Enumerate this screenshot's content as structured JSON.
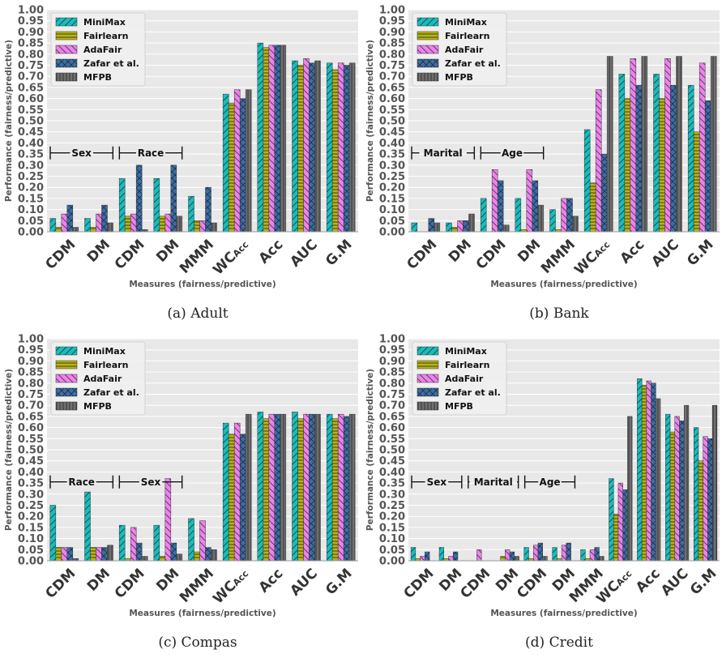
{
  "legend_labels": [
    "MiniMax",
    "Fairlearn",
    "AdaFair",
    "Zafar et al.",
    "MFPB"
  ],
  "series_colors": [
    "#17bdbd",
    "#b8b414",
    "#ee82ee",
    "#3a6fa8",
    "#6f6f6f"
  ],
  "series_patterns": [
    "diagonal-forward",
    "horizontal",
    "diagonal-back",
    "cross",
    "vertical"
  ],
  "legend_placement": "top-left",
  "grid": true,
  "chart_data": [
    {
      "type": "bar",
      "caption": "(a) Adult",
      "xlabel": "Measures (fairness/predictive)",
      "ylabel": "Performance (fairness/predictive)",
      "ylim": [
        0,
        1
      ],
      "yticks": [
        "0.00",
        "0.05",
        "0.10",
        "0.15",
        "0.20",
        "0.25",
        "0.30",
        "0.35",
        "0.40",
        "0.45",
        "0.50",
        "0.55",
        "0.60",
        "0.65",
        "0.70",
        "0.75",
        "0.80",
        "0.85",
        "0.90",
        "0.95",
        "1.00"
      ],
      "categories": [
        "CDM",
        "DM",
        "CDM",
        "DM",
        "MMM",
        "WC_Acc",
        "Acc",
        "AUC",
        "G.M"
      ],
      "groups": [
        {
          "label": "Sex",
          "from": 0,
          "to": 1
        },
        {
          "label": "Race",
          "from": 2,
          "to": 3
        }
      ],
      "series": [
        {
          "name": "MiniMax",
          "values": [
            0.06,
            0.06,
            0.24,
            0.24,
            0.16,
            0.62,
            0.85,
            0.77,
            0.76
          ]
        },
        {
          "name": "Fairlearn",
          "values": [
            0.02,
            0.02,
            0.07,
            0.07,
            0.05,
            0.58,
            0.83,
            0.75,
            0.73
          ]
        },
        {
          "name": "AdaFair",
          "values": [
            0.08,
            0.08,
            0.08,
            0.08,
            0.05,
            0.64,
            0.84,
            0.78,
            0.76
          ]
        },
        {
          "name": "Zafar et al.",
          "values": [
            0.12,
            0.12,
            0.3,
            0.3,
            0.2,
            0.6,
            0.84,
            0.76,
            0.75
          ]
        },
        {
          "name": "MFPB",
          "values": [
            0.02,
            0.04,
            0.01,
            0.07,
            0.04,
            0.64,
            0.84,
            0.77,
            0.76
          ]
        }
      ]
    },
    {
      "type": "bar",
      "caption": "(b) Bank",
      "xlabel": "Measures (fairness/predictive)",
      "ylabel": "Performance (fairness/predictive)",
      "ylim": [
        0,
        1
      ],
      "yticks": [
        "0.00",
        "0.05",
        "0.10",
        "0.15",
        "0.20",
        "0.25",
        "0.30",
        "0.35",
        "0.40",
        "0.45",
        "0.50",
        "0.55",
        "0.60",
        "0.65",
        "0.70",
        "0.75",
        "0.80",
        "0.85",
        "0.90",
        "0.95",
        "1.00"
      ],
      "categories": [
        "CDM",
        "DM",
        "CDM",
        "DM",
        "MMM",
        "WC_Acc",
        "Acc",
        "AUC",
        "G.M"
      ],
      "groups": [
        {
          "label": "Marital",
          "from": 0,
          "to": 1
        },
        {
          "label": "Age",
          "from": 2,
          "to": 3
        }
      ],
      "series": [
        {
          "name": "MiniMax",
          "values": [
            0.04,
            0.04,
            0.15,
            0.15,
            0.1,
            0.46,
            0.71,
            0.71,
            0.66
          ]
        },
        {
          "name": "Fairlearn",
          "values": [
            0.0,
            0.02,
            0.0,
            0.01,
            0.01,
            0.22,
            0.6,
            0.6,
            0.45
          ]
        },
        {
          "name": "AdaFair",
          "values": [
            0.0,
            0.05,
            0.28,
            0.28,
            0.15,
            0.64,
            0.78,
            0.78,
            0.76
          ]
        },
        {
          "name": "Zafar et al.",
          "values": [
            0.06,
            0.05,
            0.23,
            0.23,
            0.15,
            0.35,
            0.66,
            0.66,
            0.59
          ]
        },
        {
          "name": "MFPB",
          "values": [
            0.04,
            0.08,
            0.03,
            0.12,
            0.07,
            0.79,
            0.79,
            0.79,
            0.79
          ]
        }
      ]
    },
    {
      "type": "bar",
      "caption": "(c) Compas",
      "xlabel": "Measures (fairness/predictive)",
      "ylabel": "Performance (fairness/predictive)",
      "ylim": [
        0,
        1
      ],
      "yticks": [
        "0.00",
        "0.05",
        "0.10",
        "0.15",
        "0.20",
        "0.25",
        "0.30",
        "0.35",
        "0.40",
        "0.45",
        "0.50",
        "0.55",
        "0.60",
        "0.65",
        "0.70",
        "0.75",
        "0.80",
        "0.85",
        "0.90",
        "0.95",
        "1.00"
      ],
      "categories": [
        "CDM",
        "DM",
        "CDM",
        "DM",
        "MMM",
        "WC_Acc",
        "Acc",
        "AUC",
        "G.M"
      ],
      "groups": [
        {
          "label": "Race",
          "from": 0,
          "to": 1
        },
        {
          "label": "Sex",
          "from": 2,
          "to": 3
        }
      ],
      "series": [
        {
          "name": "MiniMax",
          "values": [
            0.25,
            0.31,
            0.16,
            0.16,
            0.19,
            0.62,
            0.67,
            0.67,
            0.66
          ]
        },
        {
          "name": "Fairlearn",
          "values": [
            0.06,
            0.06,
            0.01,
            0.02,
            0.04,
            0.57,
            0.64,
            0.64,
            0.64
          ]
        },
        {
          "name": "AdaFair",
          "values": [
            0.06,
            0.06,
            0.15,
            0.37,
            0.18,
            0.62,
            0.66,
            0.66,
            0.66
          ]
        },
        {
          "name": "Zafar et al.",
          "values": [
            0.06,
            0.06,
            0.08,
            0.08,
            0.06,
            0.57,
            0.66,
            0.66,
            0.65
          ]
        },
        {
          "name": "MFPB",
          "values": [
            0.01,
            0.07,
            0.02,
            0.03,
            0.05,
            0.66,
            0.66,
            0.66,
            0.66
          ]
        }
      ]
    },
    {
      "type": "bar",
      "caption": "(d) Credit",
      "xlabel": "Measures (fairness/predictive)",
      "ylabel": "Performance (fairness/predictive)",
      "ylim": [
        0,
        1
      ],
      "yticks": [
        "0.00",
        "0.05",
        "0.10",
        "0.15",
        "0.20",
        "0.25",
        "0.30",
        "0.35",
        "0.40",
        "0.45",
        "0.50",
        "0.55",
        "0.60",
        "0.65",
        "0.70",
        "0.75",
        "0.80",
        "0.85",
        "0.90",
        "0.95",
        "1.00"
      ],
      "categories": [
        "CDM",
        "DM",
        "CDM",
        "DM",
        "CDM",
        "DM",
        "MMM",
        "WC_Acc",
        "Acc",
        "AUC",
        "G.M"
      ],
      "groups": [
        {
          "label": "Sex",
          "from": 0,
          "to": 1
        },
        {
          "label": "Marital",
          "from": 2,
          "to": 3
        },
        {
          "label": "Age",
          "from": 4,
          "to": 5
        }
      ],
      "series": [
        {
          "name": "MiniMax",
          "values": [
            0.06,
            0.06,
            0.0,
            0.0,
            0.06,
            0.06,
            0.05,
            0.37,
            0.82,
            0.66,
            0.6
          ]
        },
        {
          "name": "Fairlearn",
          "values": [
            0.01,
            0.01,
            0.0,
            0.02,
            0.01,
            0.01,
            0.01,
            0.21,
            0.79,
            0.58,
            0.45
          ]
        },
        {
          "name": "AdaFair",
          "values": [
            0.02,
            0.02,
            0.05,
            0.05,
            0.07,
            0.07,
            0.05,
            0.35,
            0.81,
            0.65,
            0.56
          ]
        },
        {
          "name": "Zafar et al.",
          "values": [
            0.04,
            0.04,
            0.0,
            0.04,
            0.08,
            0.08,
            0.06,
            0.32,
            0.8,
            0.63,
            0.55
          ]
        },
        {
          "name": "MFPB",
          "values": [
            0.0,
            0.0,
            0.0,
            0.02,
            0.02,
            0.0,
            0.02,
            0.65,
            0.73,
            0.7,
            0.7
          ]
        }
      ]
    }
  ]
}
